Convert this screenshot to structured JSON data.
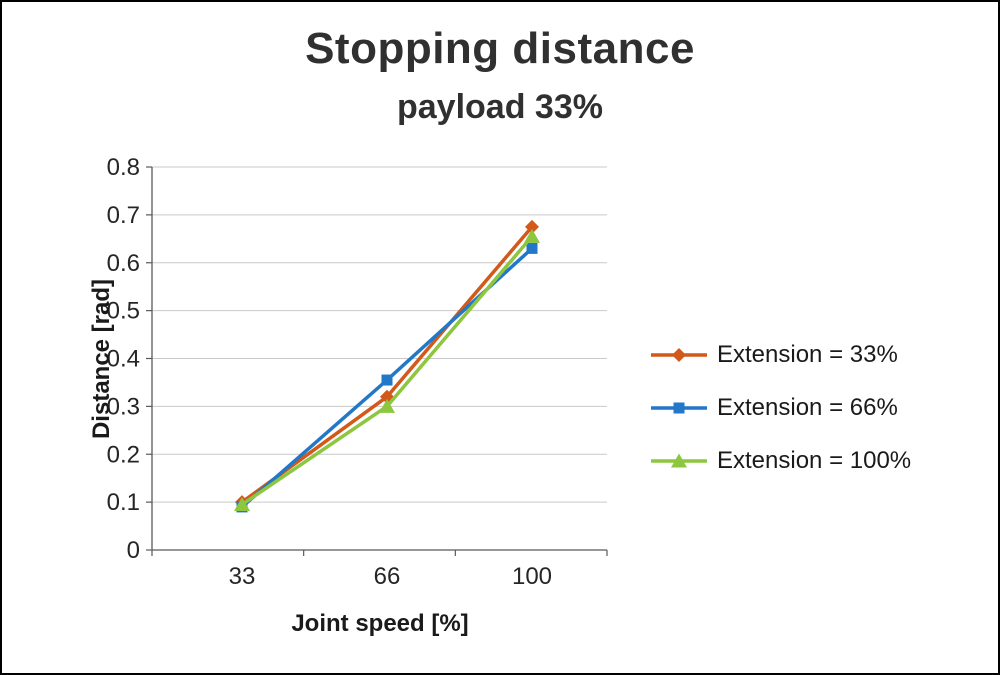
{
  "title": "Stopping distance",
  "subtitle": "payload 33%",
  "chart_data": {
    "type": "line",
    "title": "Stopping distance",
    "subtitle": "payload 33%",
    "categories": [
      "33",
      "66",
      "100"
    ],
    "series": [
      {
        "name": "Extension = 33%",
        "marker": "diamond",
        "color": "#d2591a",
        "values": [
          0.1,
          0.32,
          0.675
        ]
      },
      {
        "name": "Extension = 66%",
        "marker": "square",
        "color": "#2277c8",
        "values": [
          0.09,
          0.355,
          0.63
        ]
      },
      {
        "name": "Extension = 100%",
        "marker": "triangle",
        "color": "#8dc63f",
        "values": [
          0.095,
          0.3,
          0.655
        ]
      }
    ],
    "xlabel": "Joint speed [%]",
    "ylabel": "Distance [rad]",
    "ylim": [
      0,
      0.8
    ],
    "ytick_step": 0.1,
    "yticks": [
      "0",
      "0.1",
      "0.2",
      "0.3",
      "0.4",
      "0.5",
      "0.6",
      "0.7",
      "0.8"
    ],
    "grid": true,
    "grid_color": "#c9c9c9",
    "axis_color": "#595959",
    "legend_position": "right"
  }
}
